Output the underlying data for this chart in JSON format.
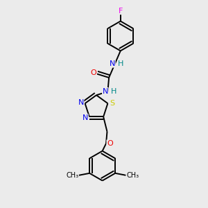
{
  "background_color": "#ebebeb",
  "bond_color": "#000000",
  "atom_colors": {
    "F": "#ee00ee",
    "N": "#0000ee",
    "O": "#ee0000",
    "S": "#cccc00",
    "H": "#008888",
    "C": "#000000"
  }
}
